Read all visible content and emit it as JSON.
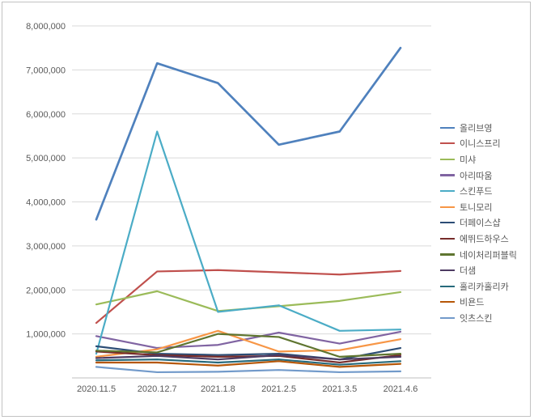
{
  "chart": {
    "title": "",
    "legend_title": ""
  },
  "chart_data": {
    "type": "line",
    "title": "",
    "xlabel": "",
    "ylabel": "",
    "grid": true,
    "legend_position": "right",
    "ylim": [
      0,
      8000000
    ],
    "ytick_interval": 1000000,
    "ytick_labels": [
      "8,000,000",
      "7,000,000",
      "6,000,000",
      "5,000,000",
      "4,000,000",
      "3,000,000",
      "2,000,000",
      "1,000,000"
    ],
    "categories": [
      "2020.11.5",
      "2020.12.7",
      "2021.1.8",
      "2021.2.5",
      "2021.3.5",
      "2021.4.6"
    ],
    "series": [
      {
        "name": "올리브영",
        "color": "#4F81BD",
        "values": [
          3600000,
          7150000,
          6700000,
          5300000,
          5600000,
          7500000
        ]
      },
      {
        "name": "이니스프리",
        "color": "#C0504D",
        "values": [
          1250000,
          2420000,
          2450000,
          2400000,
          2350000,
          2430000
        ]
      },
      {
        "name": "미샤",
        "color": "#9BBB59",
        "values": [
          1670000,
          1970000,
          1520000,
          1630000,
          1750000,
          1950000
        ]
      },
      {
        "name": "아리따움",
        "color": "#8064A2",
        "values": [
          950000,
          680000,
          750000,
          1030000,
          780000,
          1050000
        ]
      },
      {
        "name": "스킨푸드",
        "color": "#4BACC6",
        "values": [
          550000,
          5600000,
          1500000,
          1650000,
          1070000,
          1100000
        ]
      },
      {
        "name": "토니모리",
        "color": "#F79646",
        "values": [
          480000,
          650000,
          1070000,
          600000,
          630000,
          880000
        ]
      },
      {
        "name": "더페이스샵",
        "color": "#2C4D75",
        "values": [
          720000,
          550000,
          520000,
          550000,
          420000,
          680000
        ]
      },
      {
        "name": "에뛰드하우스",
        "color": "#772C2A",
        "values": [
          600000,
          520000,
          480000,
          500000,
          350000,
          520000
        ]
      },
      {
        "name": "네이처리퍼블릭",
        "color": "#5F7530",
        "values": [
          620000,
          580000,
          1000000,
          930000,
          480000,
          550000
        ]
      },
      {
        "name": "더샘",
        "color": "#4D3B62",
        "values": [
          450000,
          500000,
          420000,
          520000,
          420000,
          480000
        ]
      },
      {
        "name": "홀리카홀리카",
        "color": "#276A7C",
        "values": [
          400000,
          420000,
          350000,
          420000,
          300000,
          380000
        ]
      },
      {
        "name": "비욘드",
        "color": "#B65708",
        "values": [
          350000,
          350000,
          280000,
          380000,
          250000,
          320000
        ]
      },
      {
        "name": "잇츠스킨",
        "color": "#729ACA",
        "values": [
          250000,
          130000,
          140000,
          180000,
          130000,
          150000
        ]
      }
    ]
  }
}
